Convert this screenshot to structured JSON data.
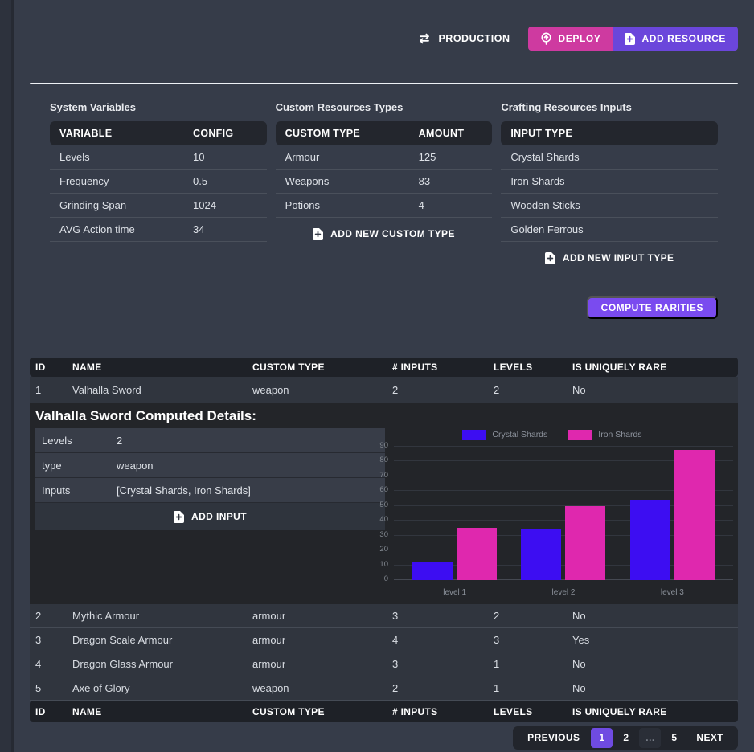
{
  "toolbar": {
    "production_label": "PRODUCTION",
    "deploy_label": "DEPLOY",
    "add_resource_label": "ADD RESOURCE"
  },
  "icons": {
    "production": "swap-arrows-icon",
    "deploy": "circle-arrow-up-icon",
    "add": "file-plus-icon"
  },
  "panels": {
    "system_variables": {
      "title": "System Variables",
      "columns": [
        "VARIABLE",
        "CONFIG"
      ],
      "rows": [
        [
          "Levels",
          "10"
        ],
        [
          "Frequency",
          "0.5"
        ],
        [
          "Grinding Span",
          "1024"
        ],
        [
          "AVG Action time",
          "34"
        ]
      ]
    },
    "custom_resources": {
      "title": "Custom Resources Types",
      "columns": [
        "CUSTOM TYPE",
        "AMOUNT"
      ],
      "rows": [
        [
          "Armour",
          "125"
        ],
        [
          "Weapons",
          "83"
        ],
        [
          "Potions",
          "4"
        ]
      ],
      "add_label": "ADD NEW CUSTOM TYPE"
    },
    "crafting_inputs": {
      "title": "Crafting Resources Inputs",
      "columns": [
        "INPUT TYPE"
      ],
      "rows": [
        [
          "Crystal Shards"
        ],
        [
          "Iron Shards"
        ],
        [
          "Wooden Sticks"
        ],
        [
          "Golden Ferrous"
        ]
      ],
      "add_label": "ADD NEW INPUT TYPE"
    }
  },
  "compute_rarities_label": "COMPUTE RARITIES",
  "resources_table": {
    "columns": [
      "ID",
      "NAME",
      "CUSTOM TYPE",
      "# INPUTS",
      "LEVELS",
      "IS UNIQUELY RARE"
    ],
    "rows": [
      [
        "1",
        "Valhalla Sword",
        "weapon",
        "2",
        "2",
        "No"
      ],
      [
        "2",
        "Mythic Armour",
        "armour",
        "3",
        "2",
        "No"
      ],
      [
        "3",
        "Dragon Scale Armour",
        "armour",
        "4",
        "3",
        "Yes"
      ],
      [
        "4",
        "Dragon Glass Armour",
        "armour",
        "3",
        "1",
        "No"
      ],
      [
        "5",
        "Axe of Glory",
        "weapon",
        "2",
        "1",
        "No"
      ]
    ]
  },
  "expanded": {
    "title": "Valhalla Sword Computed Details:",
    "fields": [
      [
        "Levels",
        "2"
      ],
      [
        "type",
        "weapon"
      ],
      [
        "Inputs",
        "[Crystal Shards, Iron Shards]"
      ]
    ],
    "add_label": "ADD INPUT"
  },
  "chart_data": {
    "type": "bar",
    "categories": [
      "level 1",
      "level 2",
      "level 3"
    ],
    "series": [
      {
        "name": "Crystal Shards",
        "color": "#3D0DF2",
        "values": [
          12,
          34,
          54
        ]
      },
      {
        "name": "Iron Shards",
        "color": "#DF28AE",
        "values": [
          35,
          50,
          88
        ]
      }
    ],
    "ylim": [
      0,
      90
    ],
    "ytick_step": 10,
    "legend_position": "top",
    "grid": true
  },
  "pagination": {
    "previous_label": "PREVIOUS",
    "pages": [
      "1",
      "2",
      "…",
      "5"
    ],
    "active_page": "1",
    "next_label": "NEXT"
  },
  "colors": {
    "deploy_button": "#CE3AA0",
    "add_resource_button": "#6B46DB",
    "compute_button": "#7A4BEF",
    "active_page": "#6F4BE2",
    "series_crystal": "#3D0DF2",
    "series_iron": "#DF28AE"
  }
}
